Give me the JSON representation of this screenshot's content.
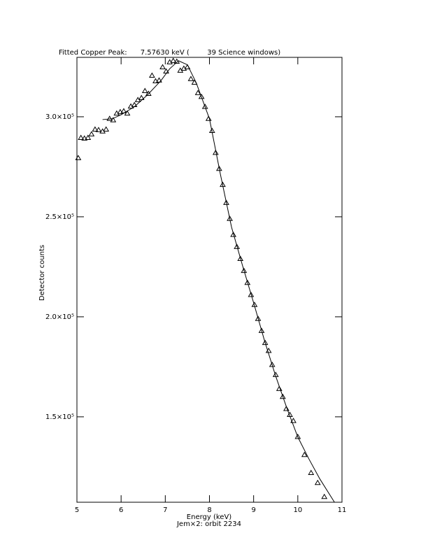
{
  "chart_data": {
    "type": "scatter",
    "title": "Fitted Copper Peak:      7.57630 keV (        39 Science windows)",
    "x_label": "Energy (keV)",
    "subtitle": "Jem×2: orbit 2234",
    "y_label": "Detector counts",
    "xlim": [
      5,
      11
    ],
    "xticks": [
      5,
      6,
      7,
      8,
      9,
      10,
      11
    ],
    "ylim": [
      107300,
      329700
    ],
    "yticks": [
      {
        "value": 150000,
        "label": "1.5×10⁵"
      },
      {
        "value": 200000,
        "label": "2.0×10⁵"
      },
      {
        "value": 250000,
        "label": "2.5×10⁵"
      },
      {
        "value": 300000,
        "label": "3.0×10⁵"
      }
    ],
    "series": [
      {
        "type": "scatter",
        "color": "#000000",
        "x": [
          5.03,
          5.09,
          5.17,
          5.25,
          5.33,
          5.41,
          5.49,
          5.58,
          5.66,
          5.74,
          5.82,
          5.9,
          5.98,
          6.06,
          6.14,
          6.22,
          6.3,
          6.38,
          6.46,
          6.54,
          6.62,
          6.7,
          6.78,
          6.86,
          6.94,
          7.02,
          7.1,
          7.18,
          7.26,
          7.34,
          7.42,
          7.5,
          7.58,
          7.66,
          7.74,
          7.82,
          7.9,
          7.98,
          8.06,
          8.14,
          8.22,
          8.3,
          8.38,
          8.46,
          8.54,
          8.62,
          8.7,
          8.78,
          8.86,
          8.94,
          9.02,
          9.1,
          9.18,
          9.26,
          9.34,
          9.42,
          9.5,
          9.58,
          9.66,
          9.74,
          9.82,
          9.9,
          10.0,
          10.15,
          10.3,
          10.45,
          10.6
        ],
        "values": [
          279400,
          289500,
          289200,
          289500,
          291300,
          293700,
          293400,
          292700,
          293700,
          299000,
          298300,
          301700,
          302400,
          302800,
          301700,
          305200,
          305900,
          308400,
          309400,
          312900,
          311500,
          320600,
          317800,
          318200,
          324800,
          322700,
          327300,
          328000,
          327600,
          323100,
          324100,
          324800,
          318900,
          317100,
          311900,
          310000,
          305000,
          299000,
          293000,
          282000,
          274000,
          266000,
          257000,
          249000,
          241000,
          235000,
          229000,
          223000,
          217000,
          211000,
          206000,
          199000,
          193000,
          187000,
          183000,
          176000,
          171000,
          164000,
          160000,
          154000,
          151000,
          148000,
          140000,
          131000,
          122000,
          117000,
          110000
        ]
      },
      {
        "type": "line",
        "color": "#000000",
        "x": [
          5.58,
          5.8,
          6.0,
          6.3,
          6.6,
          6.9,
          7.1,
          7.3,
          7.5,
          7.7,
          7.9,
          8.0,
          8.25,
          8.5,
          8.75,
          9.0,
          9.25,
          9.5,
          9.75,
          10.0,
          10.25,
          10.5,
          10.83
        ],
        "values": [
          298600,
          299000,
          301000,
          305000,
          311000,
          318000,
          324000,
          328000,
          326000,
          317000,
          305000,
          299000,
          271000,
          244800,
          225500,
          207000,
          187800,
          170300,
          154500,
          139900,
          129000,
          118900,
          107300
        ]
      }
    ]
  }
}
